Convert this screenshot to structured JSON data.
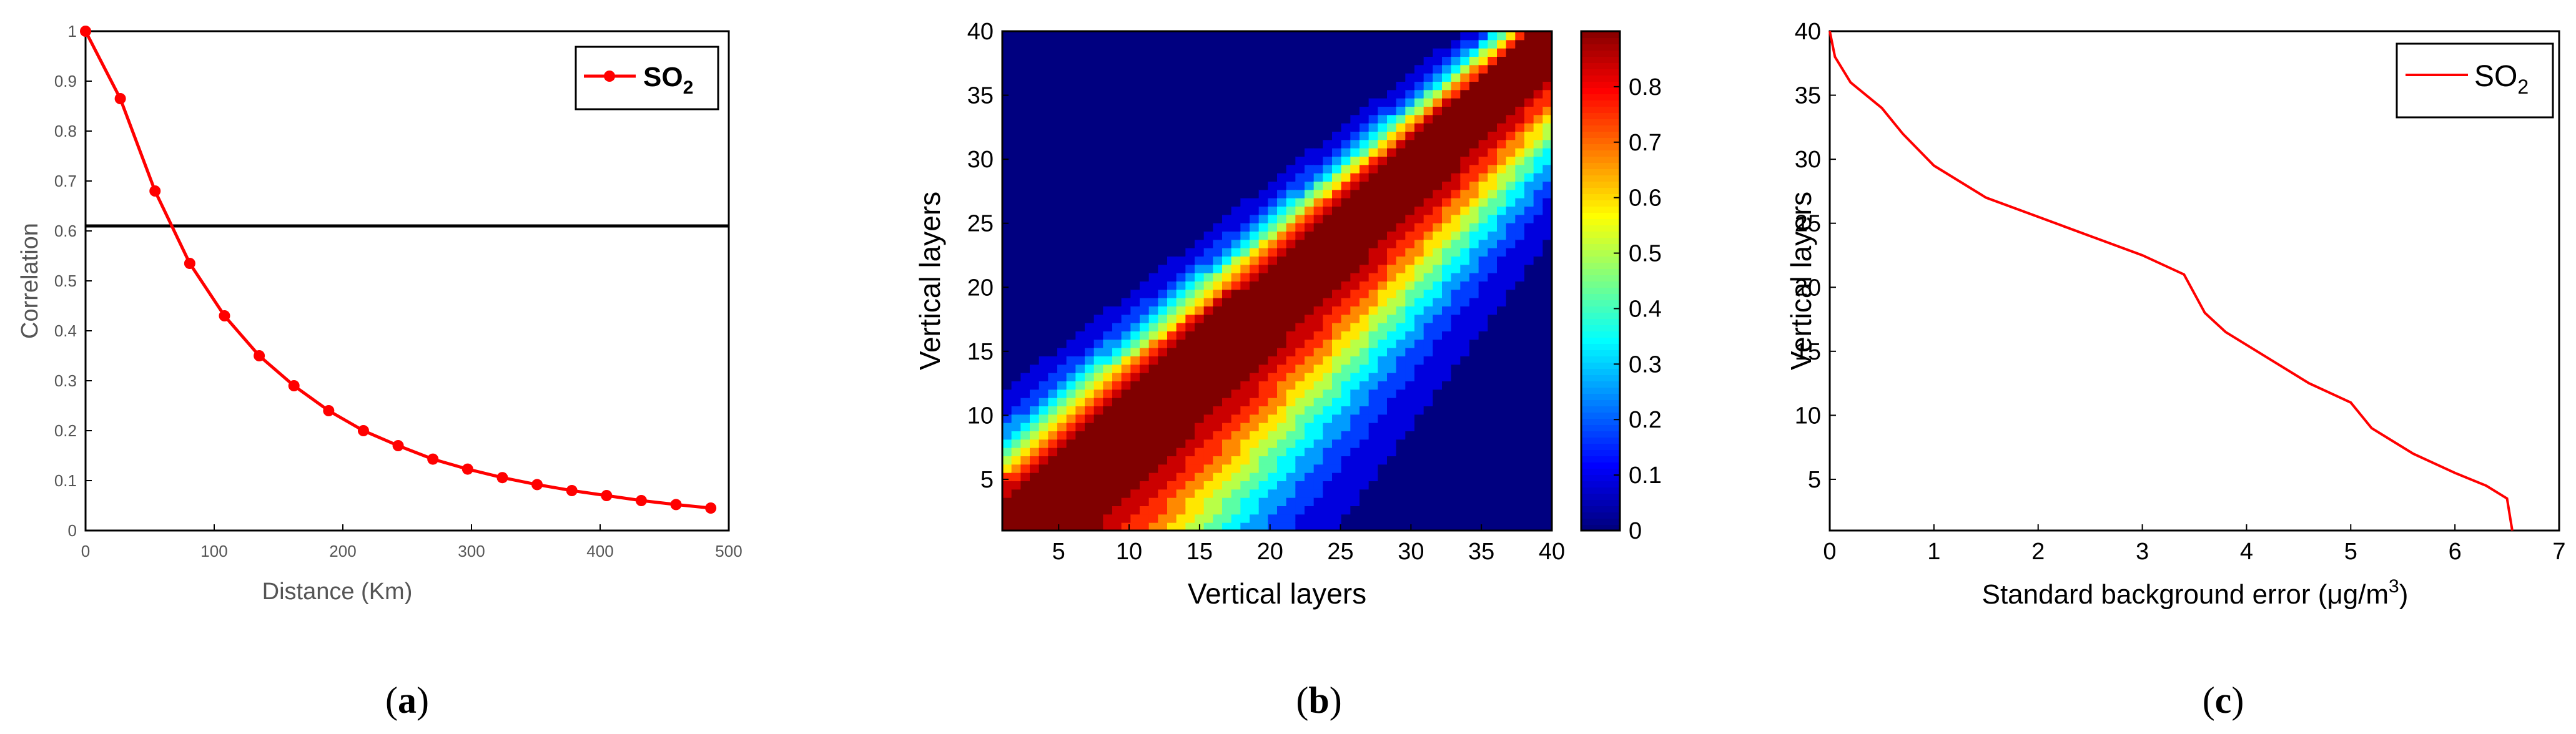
{
  "chart_data": [
    {
      "id": "a",
      "type": "line",
      "xlabel": "Distance (Km)",
      "ylabel": "Correlation",
      "xlim": [
        0,
        500
      ],
      "ylim": [
        0,
        1
      ],
      "xticks": [
        0,
        100,
        200,
        300,
        400,
        500
      ],
      "yticks": [
        0,
        0.1,
        0.2,
        0.3,
        0.4,
        0.5,
        0.6,
        0.7,
        0.8,
        0.9,
        1
      ],
      "ytick_labels": [
        "0",
        "0.1",
        "0.2",
        "0.3",
        "0.4",
        "0.5",
        "0.6",
        "0.7",
        "0.8",
        "0.9",
        "1"
      ],
      "legend": {
        "label": "SO",
        "sub": "2",
        "position": "top-right"
      },
      "reference_line_y": 0.61,
      "series": [
        {
          "name": "SO2",
          "color": "#ff0000",
          "x": [
            0,
            27,
            54,
            81,
            108,
            135,
            162,
            189,
            216,
            243,
            270,
            297,
            324,
            351,
            378,
            405,
            432,
            459,
            486
          ],
          "y": [
            1.0,
            0.865,
            0.68,
            0.535,
            0.43,
            0.35,
            0.29,
            0.24,
            0.2,
            0.17,
            0.143,
            0.123,
            0.106,
            0.092,
            0.08,
            0.07,
            0.06,
            0.052,
            0.045
          ]
        }
      ],
      "caption": "a"
    },
    {
      "id": "b",
      "type": "heatmap",
      "xlabel": "Vertical layers",
      "ylabel": "Vertical layers",
      "xlim": [
        1,
        40
      ],
      "ylim": [
        1,
        40
      ],
      "xticks": [
        5,
        10,
        15,
        20,
        25,
        30,
        35,
        40
      ],
      "yticks": [
        5,
        10,
        15,
        20,
        25,
        30,
        35,
        40
      ],
      "colorbar": {
        "min": 0,
        "max": 0.9,
        "ticks": [
          0,
          0.1,
          0.2,
          0.3,
          0.4,
          0.5,
          0.6,
          0.7,
          0.8
        ],
        "tick_labels": [
          "0",
          "0.1",
          "0.2",
          "0.3",
          "0.4",
          "0.5",
          "0.6",
          "0.7",
          "0.8"
        ]
      },
      "description_model": {
        "diagonal_value": 1.0,
        "lower_band_width": 14,
        "upper_band_width": 5
      },
      "caption": "b"
    },
    {
      "id": "c",
      "type": "line",
      "xlabel": "Standard background error (μg/m",
      "xlabel_sup": "3",
      "xlabel_end": ")",
      "ylabel": "Vertical layers",
      "xlim": [
        0,
        7
      ],
      "ylim": [
        1,
        40
      ],
      "xticks": [
        0,
        1,
        2,
        3,
        4,
        5,
        6,
        7
      ],
      "yticks": [
        5,
        10,
        15,
        20,
        25,
        30,
        35,
        40
      ],
      "legend": {
        "label": "SO",
        "sub": "2",
        "position": "top-right"
      },
      "series": [
        {
          "name": "SO2",
          "color": "#ff0000",
          "x": [
            0.0,
            0.05,
            0.2,
            0.5,
            0.7,
            1.0,
            1.5,
            2.0,
            2.5,
            3.0,
            3.4,
            3.6,
            3.8,
            4.2,
            4.6,
            5.0,
            5.2,
            5.6,
            6.0,
            6.3,
            6.5,
            6.55
          ],
          "y": [
            40,
            38,
            36,
            34,
            32,
            29.5,
            27,
            25.5,
            24,
            22.5,
            21,
            18,
            16.5,
            14.5,
            12.5,
            11,
            9,
            7,
            5.5,
            4.5,
            3.5,
            1
          ]
        }
      ],
      "caption": "c"
    }
  ],
  "captions": [
    "a",
    "b",
    "c"
  ]
}
